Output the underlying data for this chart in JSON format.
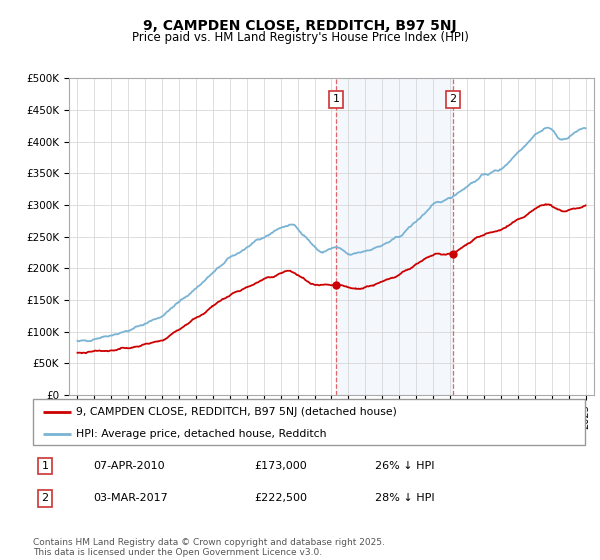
{
  "title": "9, CAMPDEN CLOSE, REDDITCH, B97 5NJ",
  "subtitle": "Price paid vs. HM Land Registry's House Price Index (HPI)",
  "ylim": [
    0,
    500000
  ],
  "xlim_start": 1994.5,
  "xlim_end": 2025.5,
  "hpi_color": "#7ab3d4",
  "price_color": "#cc0000",
  "marker1_date": 2010.27,
  "marker2_date": 2017.17,
  "legend_line1": "9, CAMPDEN CLOSE, REDDITCH, B97 5NJ (detached house)",
  "legend_line2": "HPI: Average price, detached house, Redditch",
  "footnote": "Contains HM Land Registry data © Crown copyright and database right 2025.\nThis data is licensed under the Open Government Licence v3.0."
}
